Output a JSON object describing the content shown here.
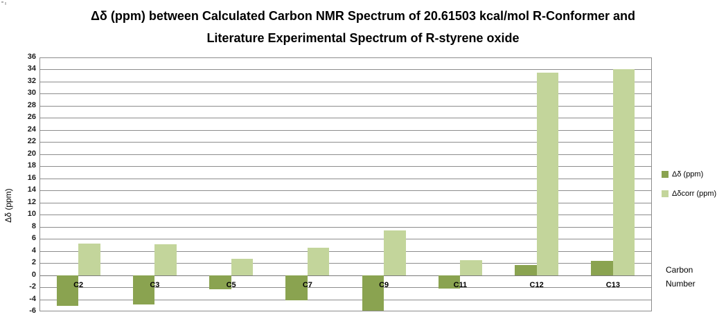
{
  "chart_data": {
    "type": "bar",
    "title": "Δδ (ppm) between Calculated Carbon NMR Spectrum of 20.61503 kcal/mol R-Conformer and Literature Experimental Spectrum of R-styrene oxide",
    "categories": [
      "C2",
      "C3",
      "C5",
      "C7",
      "C9",
      "C11",
      "C12",
      "C13"
    ],
    "series": [
      {
        "name": "Δδ (ppm)",
        "color": "#8aa350",
        "values": [
          -5.1,
          -4.9,
          -2.3,
          -4.2,
          -5.9,
          -2.2,
          1.7,
          2.4
        ]
      },
      {
        "name": "Δδcorr (ppm)",
        "color": "#c3d59b",
        "values": [
          5.2,
          5.1,
          2.7,
          4.5,
          7.4,
          2.5,
          33.5,
          34.0
        ]
      }
    ],
    "xlabel": "Carbon Number",
    "ylabel": "Δδ (ppm)",
    "ylim": [
      -6,
      36
    ],
    "ytick_step": 2,
    "grid": "horizontal",
    "legend_position": "right"
  },
  "x_axis_title": {
    "line1": "Carbon",
    "line2": "Number"
  },
  "colors": {
    "gridline": "#8c8c8c",
    "zero_axis": "#7a7a7a",
    "background": "#ffffff"
  }
}
